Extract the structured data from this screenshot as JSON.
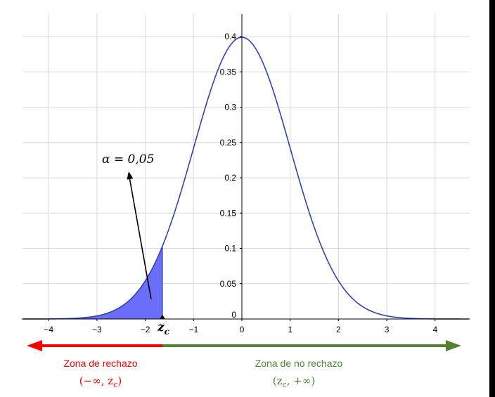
{
  "chart_data": {
    "type": "area",
    "title": "",
    "xlabel": "",
    "ylabel": "",
    "xlim": [
      -4.55,
      4.7
    ],
    "ylim": [
      0,
      0.42
    ],
    "x_ticks": [
      -4,
      -3,
      -2,
      -1,
      0,
      1,
      2,
      3,
      4
    ],
    "x_tick_labels": [
      "−4",
      "−3",
      "−2",
      "−1",
      "0",
      "1",
      "2",
      "3",
      "4"
    ],
    "y_ticks": [
      0,
      0.05,
      0.1,
      0.15,
      0.2,
      0.25,
      0.3,
      0.35,
      0.4
    ],
    "y_tick_labels": [
      "0",
      "0.05",
      "0.1",
      "0.15",
      "0.2",
      "0.25",
      "0.3",
      "0.35",
      "0.4"
    ],
    "grid": true,
    "series": [
      {
        "type": "line",
        "function": "standard normal density",
        "x": [
          -4.5,
          -4,
          -3.5,
          -3,
          -2.5,
          -2,
          -1.645,
          -1.5,
          -1,
          -0.5,
          0,
          0.5,
          1,
          1.5,
          2,
          2.5,
          3,
          3.5,
          4,
          4.5
        ],
        "y": [
          0.0,
          0.0001,
          0.0009,
          0.0044,
          0.0175,
          0.054,
          0.1031,
          0.1295,
          0.242,
          0.3521,
          0.3989,
          0.3521,
          0.242,
          0.1295,
          0.054,
          0.0175,
          0.0044,
          0.0009,
          0.0001,
          0.0
        ],
        "color": "#3341b8"
      }
    ],
    "shaded_region": {
      "from": -4.55,
      "to": -1.645,
      "fill": "#6b6ef8",
      "stroke": "#3341b8"
    },
    "critical_value": {
      "x": -1.645,
      "label": "z",
      "subscript": "c"
    },
    "annotations": {
      "alpha_label": "α = 0,05"
    },
    "regions": [
      {
        "label": "Zona de rechazo",
        "interval": "(−∞, z",
        "interval_sub": "c",
        "interval_end": ")",
        "color": "#ff0000",
        "arrow_direction": "left"
      },
      {
        "label": "Zona de no rechazo",
        "interval": "(z",
        "interval_sub": "c",
        "interval_end": ", +∞)",
        "color": "#548235",
        "arrow_direction": "right"
      }
    ]
  },
  "colors": {
    "curve": "#3341b8",
    "fill": "#6b6ef8",
    "grid": "#d9d9d9",
    "reject": "#ff0000",
    "accept": "#548235"
  }
}
